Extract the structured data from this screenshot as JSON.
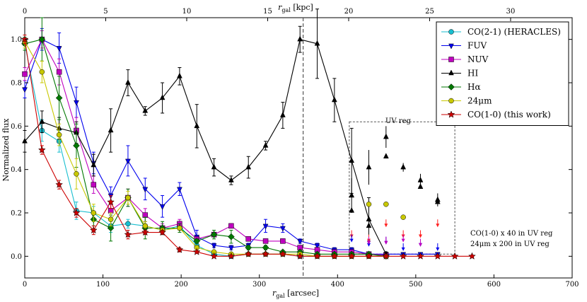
{
  "chart_data": {
    "type": "line",
    "xlabel": "r_gal [arcsec]",
    "xlabel_main": "r",
    "xlabel_sub": "gal",
    "xlabel_unit": " [arcsec]",
    "top_xlabel_main": "r",
    "top_xlabel_sub": "gal",
    "top_xlabel_unit": " [kpc]",
    "ylabel": "Normalized flux",
    "xlim": [
      0,
      700
    ],
    "ylim": [
      -0.1,
      1.1
    ],
    "top_xlim": [
      0,
      33.8
    ],
    "x_ticks": [
      0,
      100,
      200,
      300,
      400,
      500,
      600,
      700
    ],
    "y_ticks": [
      0.0,
      0.2,
      0.4,
      0.6,
      0.8,
      1.0
    ],
    "y_tick_labels": [
      "0.0",
      "0.2",
      "0.4",
      "0.6",
      "0.8",
      "1.0"
    ],
    "top_ticks": [
      0,
      5,
      10,
      15,
      20,
      25,
      30
    ],
    "vline_x": 356,
    "uv_box": {
      "x": [
        415,
        550
      ],
      "y": [
        0.01,
        0.62
      ],
      "label": "UV reg"
    },
    "annotations": [
      "CO(1-0) x 40 in UV reg",
      "24μm x 200 in UV reg"
    ],
    "legend_location": "top-right",
    "series": [
      {
        "name": "CO(2-1) (HERACLES)",
        "color": "#17becf",
        "marker": "circle",
        "x": [
          0,
          22,
          44,
          66,
          88,
          110,
          132,
          154,
          176,
          198,
          220,
          242,
          264,
          286,
          308,
          330,
          352,
          374,
          396,
          418,
          440,
          462
        ],
        "y": [
          0.98,
          0.58,
          0.53,
          0.21,
          0.2,
          0.14,
          0.15,
          0.14,
          0.12,
          0.14,
          0.05,
          0.01,
          0.0,
          0.01,
          0.01,
          0.01,
          0.0,
          0.0,
          0.0,
          0.0,
          0.0,
          0.0
        ],
        "err": [
          0.02,
          0.05,
          0.05,
          0.04,
          0.03,
          0.03,
          0.02,
          0.02,
          0.02,
          0.02,
          0.01,
          0.01,
          0.005,
          0.005,
          0.005,
          0.005,
          0.005,
          0.005,
          0.005,
          0.005,
          0.005,
          0.005
        ]
      },
      {
        "name": "FUV",
        "color": "#0000ee",
        "marker": "triangle-down",
        "x": [
          0,
          22,
          44,
          66,
          88,
          110,
          132,
          154,
          176,
          198,
          220,
          242,
          264,
          286,
          308,
          330,
          352,
          374,
          396,
          418,
          440,
          462,
          484,
          506,
          528
        ],
        "y": [
          0.77,
          1.0,
          0.96,
          0.71,
          0.43,
          0.28,
          0.44,
          0.31,
          0.23,
          0.31,
          0.09,
          0.05,
          0.04,
          0.05,
          0.14,
          0.13,
          0.07,
          0.05,
          0.03,
          0.03,
          0.01,
          0.01,
          0.01,
          0.01,
          0.01
        ],
        "err": [
          0.04,
          0.05,
          0.07,
          0.07,
          0.05,
          0.04,
          0.07,
          0.05,
          0.05,
          0.03,
          0.03,
          0.01,
          0.01,
          0.01,
          0.03,
          0.02,
          0.01,
          0.01,
          0.01,
          0.01,
          0.005,
          0.005,
          0.005,
          0.005,
          0.005
        ]
      },
      {
        "name": "NUV",
        "color": "#bf00bf",
        "marker": "square",
        "x": [
          0,
          22,
          44,
          66,
          88,
          110,
          132,
          154,
          176,
          198,
          220,
          242,
          264,
          286,
          308,
          330,
          352,
          374,
          396,
          418,
          440,
          462
        ],
        "y": [
          0.84,
          1.0,
          0.85,
          0.58,
          0.33,
          0.21,
          0.27,
          0.19,
          0.13,
          0.15,
          0.08,
          0.1,
          0.14,
          0.08,
          0.07,
          0.07,
          0.04,
          0.03,
          0.02,
          0.02,
          0.01,
          0.005
        ],
        "err": [
          0.03,
          0.04,
          0.06,
          0.06,
          0.04,
          0.03,
          0.04,
          0.03,
          0.02,
          0.02,
          0.01,
          0.01,
          0.01,
          0.01,
          0.01,
          0.01,
          0.005,
          0.005,
          0.005,
          0.005,
          0.005,
          0.005
        ]
      },
      {
        "name": "HI",
        "color": "#000000",
        "marker": "triangle-up",
        "x": [
          0,
          22,
          44,
          66,
          88,
          110,
          132,
          154,
          176,
          198,
          220,
          242,
          264,
          286,
          308,
          330,
          352,
          374,
          396,
          418,
          440,
          462
        ],
        "y": [
          0.53,
          0.62,
          0.59,
          0.57,
          0.42,
          0.58,
          0.8,
          0.67,
          0.73,
          0.83,
          0.6,
          0.41,
          0.35,
          0.41,
          0.51,
          0.65,
          1.0,
          0.98,
          0.72,
          0.44,
          0.17,
          0.01
        ],
        "err": [
          0.05,
          0.05,
          0.05,
          0.05,
          0.05,
          0.1,
          0.06,
          0.02,
          0.07,
          0.04,
          0.1,
          0.04,
          0.02,
          0.05,
          0.02,
          0.06,
          0.06,
          0.16,
          0.1,
          0.15,
          0.1,
          0.01
        ]
      },
      {
        "name": "Hα",
        "color": "#007700",
        "marker": "diamond",
        "x": [
          0,
          22,
          44,
          66,
          88,
          110,
          132,
          154,
          176,
          198,
          220,
          242,
          264,
          286,
          308,
          330,
          352,
          374,
          396,
          418,
          440,
          462
        ],
        "y": [
          0.98,
          1.0,
          0.73,
          0.51,
          0.17,
          0.13,
          0.27,
          0.13,
          0.13,
          0.13,
          0.07,
          0.1,
          0.09,
          0.04,
          0.04,
          0.02,
          0.02,
          0.01,
          0.01,
          0.01,
          0.01,
          0.0
        ],
        "err": [
          0.03,
          0.1,
          0.1,
          0.1,
          0.03,
          0.06,
          0.04,
          0.05,
          0.03,
          0.02,
          0.01,
          0.02,
          0.03,
          0.01,
          0.01,
          0.005,
          0.005,
          0.005,
          0.005,
          0.005,
          0.005,
          0.005
        ]
      },
      {
        "name": "24μm",
        "color": "#c8c800",
        "marker": "circle",
        "x": [
          0,
          22,
          44,
          66,
          88,
          110,
          132,
          154,
          176,
          198,
          220,
          242,
          264,
          286,
          308,
          330,
          352,
          374,
          396,
          418,
          440,
          462
        ],
        "y": [
          0.99,
          0.85,
          0.56,
          0.38,
          0.2,
          0.17,
          0.27,
          0.14,
          0.12,
          0.13,
          0.04,
          0.02,
          0.01,
          0.01,
          0.01,
          0.01,
          0.01,
          0.0,
          0.0,
          0.0,
          0.0,
          0.0
        ],
        "err": [
          0.03,
          0.05,
          0.05,
          0.07,
          0.04,
          0.03,
          0.03,
          0.02,
          0.01,
          0.01,
          0.01,
          0.005,
          0.005,
          0.005,
          0.005,
          0.005,
          0.005,
          0.005,
          0.005,
          0.005,
          0.005,
          0.005
        ]
      },
      {
        "name": "CO(1-0) (this work)",
        "color": "#cc0000",
        "marker": "star",
        "x": [
          0,
          22,
          44,
          66,
          88,
          110,
          132,
          154,
          176,
          198,
          220,
          242,
          264,
          286,
          308,
          330,
          352,
          374,
          396,
          418,
          440,
          462,
          484,
          506,
          528,
          550,
          572
        ],
        "y": [
          1.0,
          0.49,
          0.33,
          0.2,
          0.12,
          0.25,
          0.1,
          0.11,
          0.11,
          0.03,
          0.02,
          0.0,
          0.0,
          0.01,
          0.01,
          0.01,
          0.0,
          0.0,
          0.0,
          0.0,
          0.0,
          0.0,
          0.0,
          0.0,
          0.0,
          0.0,
          0.0
        ],
        "err": [
          0.02,
          0.02,
          0.02,
          0.02,
          0.02,
          0.03,
          0.02,
          0.01,
          0.01,
          0.01,
          0.005,
          0.005,
          0.005,
          0.005,
          0.005,
          0.005,
          0.005,
          0.005,
          0.005,
          0.005,
          0.005,
          0.005,
          0.005,
          0.005,
          0.005,
          0.005,
          0.005
        ]
      }
    ],
    "uv_points": {
      "HI": {
        "x": [
          418,
          440,
          462,
          484,
          506,
          528
        ],
        "y": [
          0.28,
          0.41,
          0.55,
          0.41,
          0.35,
          0.26
        ],
        "err": [
          0.08,
          0.08,
          0.05,
          0.02,
          0.03,
          0.03
        ]
      },
      "HI_extra": {
        "x": [
          418,
          440,
          462,
          506,
          528
        ],
        "y": [
          0.21,
          0.14,
          0.46,
          0.32,
          0.25
        ]
      },
      "24um": {
        "x": [
          440,
          462,
          484
        ],
        "y": [
          0.24,
          0.24,
          0.18
        ]
      },
      "CO10_arrows": {
        "x": [
          418,
          440,
          462,
          484,
          506,
          528
        ],
        "y": [
          0.12,
          0.1,
          0.17,
          0.12,
          0.12,
          0.17
        ]
      },
      "FUV_arrows": {
        "x": [
          418,
          440,
          462,
          484,
          506,
          528
        ],
        "y": [
          0.1,
          0.08,
          0.09,
          0.06,
          0.08,
          0.06
        ]
      },
      "NUV_arrows": {
        "x": [
          440,
          462,
          484,
          506
        ],
        "y": [
          0.09,
          0.09,
          0.1,
          0.08
        ]
      }
    }
  }
}
